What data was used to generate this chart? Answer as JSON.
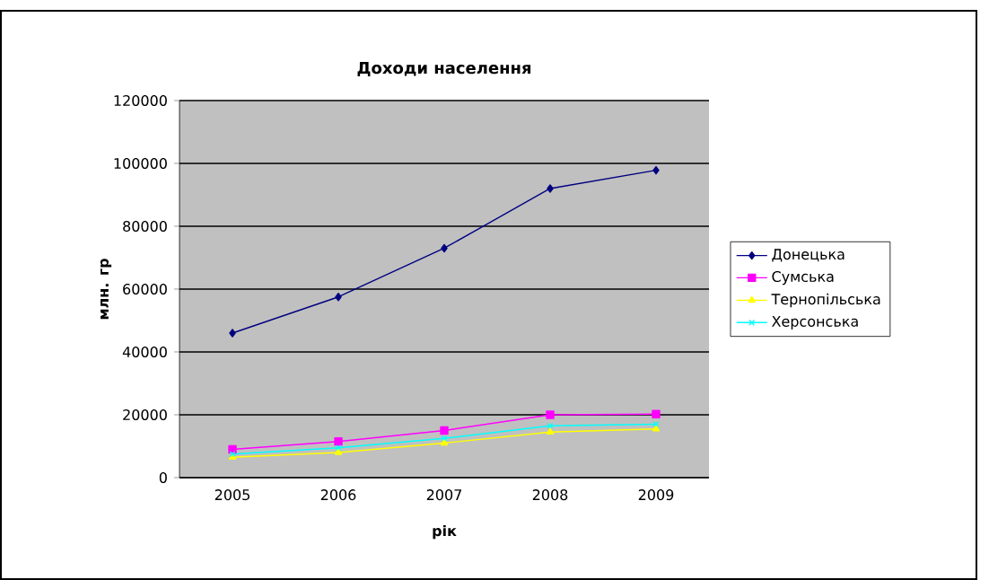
{
  "chart_data": {
    "type": "line",
    "title": "Доходи населення",
    "xlabel": "рік",
    "ylabel": "млн. гр",
    "categories": [
      "2005",
      "2006",
      "2007",
      "2008",
      "2009"
    ],
    "series": [
      {
        "name": "Донецька",
        "color": "#000080",
        "marker": "diamond",
        "values": [
          46000,
          57500,
          73000,
          92000,
          97800
        ]
      },
      {
        "name": "Сумська",
        "color": "#ff00ff",
        "marker": "square",
        "values": [
          9000,
          11500,
          15000,
          20000,
          20200
        ]
      },
      {
        "name": "Тернопільська",
        "color": "#ffff00",
        "marker": "triangle",
        "values": [
          6500,
          8000,
          11000,
          14500,
          15500
        ]
      },
      {
        "name": "Херсонська",
        "color": "#00ffff",
        "marker": "cross",
        "values": [
          7500,
          9500,
          12500,
          16500,
          17000
        ]
      }
    ],
    "ylim": [
      0,
      120000
    ],
    "yticks": [
      0,
      20000,
      40000,
      60000,
      80000,
      100000,
      120000
    ],
    "grid": "y",
    "legend": "right"
  }
}
